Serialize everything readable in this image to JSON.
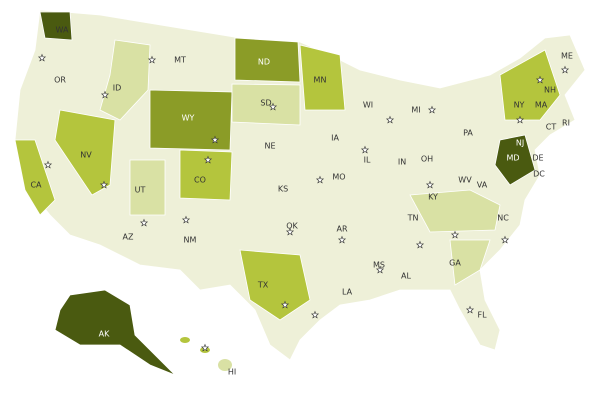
{
  "labels": [
    "WA",
    "OR",
    "CA",
    "NV",
    "ID",
    "MT",
    "WY",
    "UT",
    "AZ",
    "NM",
    "CO",
    "ND",
    "SD",
    "NE",
    "KS",
    "OK",
    "TX",
    "MN",
    "IA",
    "MO",
    "AR",
    "LA",
    "WI",
    "IL",
    "MS",
    "AL",
    "TN",
    "KY",
    "IN",
    "OH",
    "MI",
    "GA",
    "FL",
    "WV",
    "VA",
    "NC",
    "PA",
    "NY",
    "NH",
    "ME",
    "MA",
    "RI",
    "CT",
    "NJ",
    "DE",
    "MD",
    "DC",
    "AK",
    "HI"
  ]
}
